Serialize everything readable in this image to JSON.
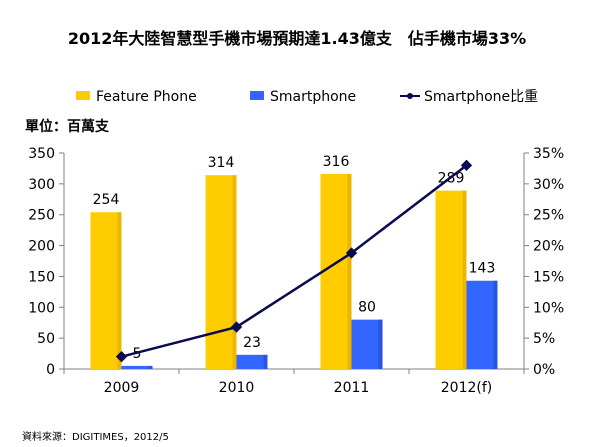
{
  "colors": {
    "feature_phone": "#FFCC00",
    "feature_phone_shade": "#D9A400",
    "smartphone": "#3366FF",
    "smartphone_shade": "#2244BB",
    "share_line": "#0A0A50",
    "axis": "#808080",
    "grid": "#D9D9D9"
  },
  "source": "資料來源：DIGITIMES，2012/5",
  "chart_data": {
    "type": "bar",
    "title": "2012年大陸智慧型手機市場預期達1.43億支　佔手機市場33%",
    "unit_label": "單位：百萬支",
    "categories": [
      "2009",
      "2010",
      "2011",
      "2012(f)"
    ],
    "series": [
      {
        "name": "Feature Phone",
        "type": "bar",
        "axis": "left",
        "values": [
          254,
          314,
          316,
          289
        ]
      },
      {
        "name": "Smartphone",
        "type": "bar",
        "axis": "left",
        "values": [
          5,
          23,
          80,
          143
        ]
      },
      {
        "name": "Smartphone比重",
        "type": "line",
        "axis": "right",
        "values": [
          2.0,
          6.8,
          18.8,
          33.0
        ]
      }
    ],
    "y_left": {
      "min": 0,
      "max": 350,
      "ticks": [
        "0",
        "50",
        "100",
        "150",
        "200",
        "250",
        "300",
        "350"
      ]
    },
    "y_right": {
      "min": 0,
      "max": 35,
      "ticks": [
        "0%",
        "5%",
        "10%",
        "15%",
        "20%",
        "25%",
        "30%",
        "35%"
      ]
    },
    "legend_position": "top",
    "grid": false
  }
}
